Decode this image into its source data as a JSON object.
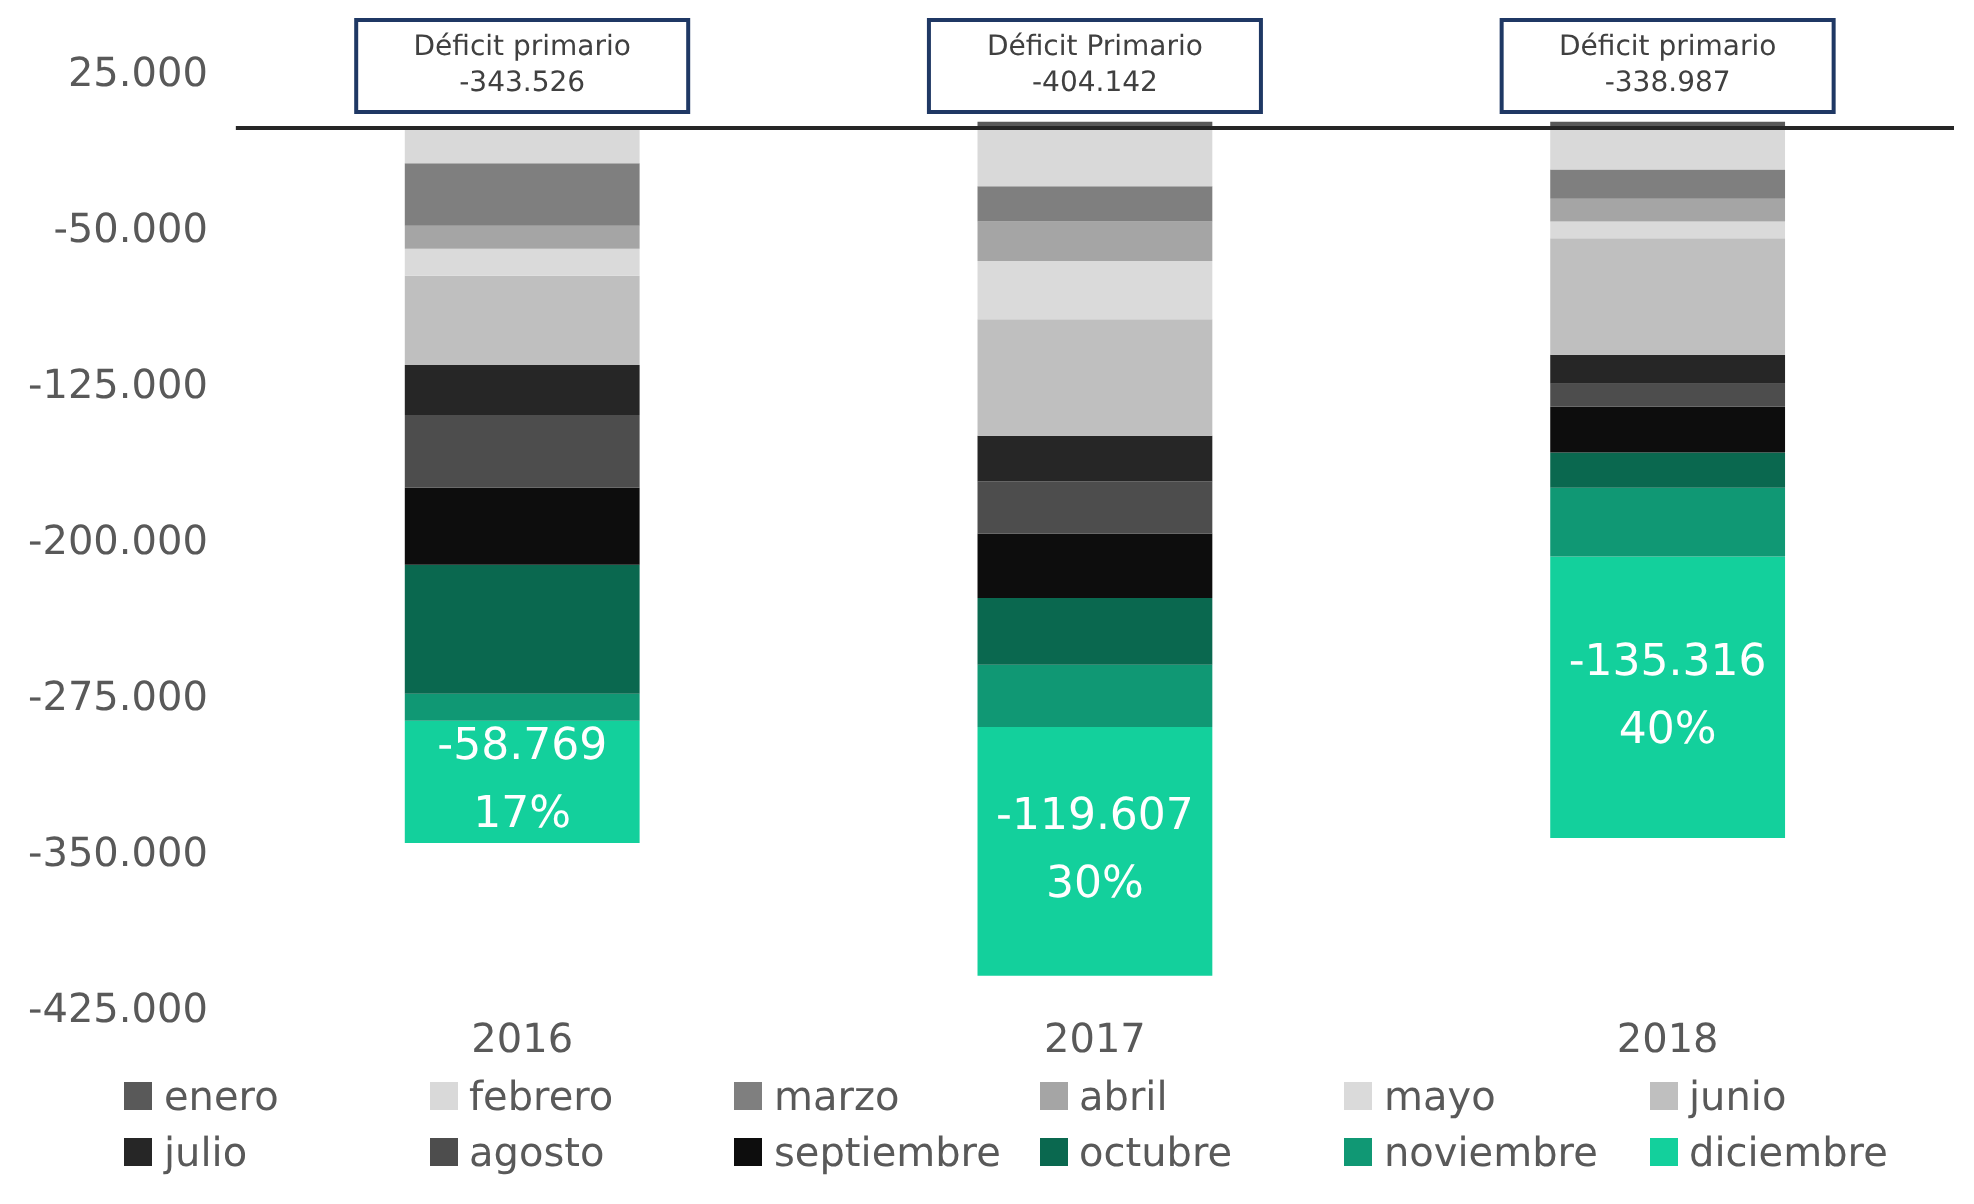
{
  "chart_data": {
    "type": "bar",
    "stacked": true,
    "categories": [
      "2016",
      "2017",
      "2018"
    ],
    "series": [
      {
        "name": "enero",
        "color": "#595959",
        "values": [
          0,
          3000,
          3000
        ]
      },
      {
        "name": "febrero",
        "color": "#d9d9d9",
        "values": [
          -17000,
          -28000,
          -20000
        ]
      },
      {
        "name": "marzo",
        "color": "#7f7f7f",
        "values": [
          -30000,
          -17000,
          -14000
        ]
      },
      {
        "name": "abril",
        "color": "#a5a5a5",
        "values": [
          -11000,
          -19000,
          -11000
        ]
      },
      {
        "name": "mayo",
        "color": "#dadada",
        "values": [
          -13000,
          -28000,
          -8000
        ]
      },
      {
        "name": "junio",
        "color": "#bfbfbf",
        "values": [
          -43000,
          -56000,
          -56000
        ]
      },
      {
        "name": "julio",
        "color": "#262626",
        "values": [
          -24000,
          -22000,
          -14000
        ]
      },
      {
        "name": "agosto",
        "color": "#4d4d4d",
        "values": [
          -35000,
          -25000,
          -11000
        ]
      },
      {
        "name": "septiembre",
        "color": "#0d0d0d",
        "values": [
          -37000,
          -31000,
          -22000
        ]
      },
      {
        "name": "octubre",
        "color": "#0a684f",
        "values": [
          -62000,
          -32000,
          -17000
        ]
      },
      {
        "name": "noviembre",
        "color": "#109874",
        "values": [
          -13000,
          -30000,
          -33000
        ]
      },
      {
        "name": "diciembre",
        "color": "#13d09c",
        "values": [
          -58769,
          -119607,
          -135316
        ],
        "value_labels": [
          "-58.769\n17%",
          "-119.607\n30%",
          "-135.316\n40%"
        ]
      }
    ],
    "ylim": [
      -425000,
      25000
    ],
    "yticks": [
      {
        "value": 25000,
        "label": "25.000"
      },
      {
        "value": -50000,
        "label": "-50.000"
      },
      {
        "value": -125000,
        "label": "-125.000"
      },
      {
        "value": -200000,
        "label": "-200.000"
      },
      {
        "value": -275000,
        "label": "-275.000"
      },
      {
        "value": -350000,
        "label": "-350.000"
      },
      {
        "value": -425000,
        "label": "-425.000"
      }
    ],
    "grid": false,
    "legend": "bottom",
    "ref_lines": [
      {
        "axis": "y",
        "value": 0,
        "color": "#262626"
      }
    ],
    "annotations": [
      "Déficit primario\n-343.526",
      "Déficit Primario\n-404.142",
      "Déficit primario\n-338.987"
    ]
  }
}
